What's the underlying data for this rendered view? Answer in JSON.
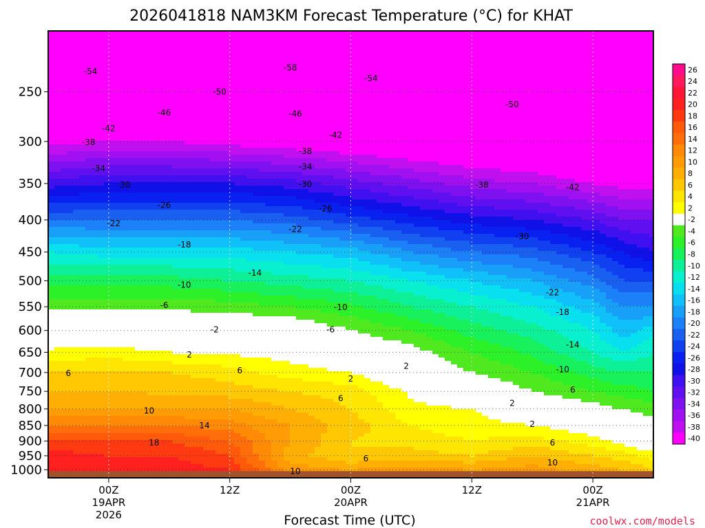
{
  "chart_data": {
    "type": "heatmap",
    "title": "2026041818 NAM3KM Forecast Temperature (°C) for KHAT",
    "xlabel": "Forecast Time (UTC)",
    "ylabel": "",
    "credit": "coolwx.com/models",
    "y_axis": {
      "scale": "log",
      "inverted": true,
      "unit": "hPa",
      "ylim": [
        1030,
        200
      ],
      "ticks": [
        250,
        300,
        350,
        400,
        450,
        500,
        550,
        600,
        650,
        700,
        750,
        800,
        850,
        900,
        950,
        1000
      ]
    },
    "x_axis": {
      "unit": "hours since 2026-04-18 18Z",
      "xlim": [
        0,
        60
      ],
      "gridlines_at": [
        6,
        18,
        30,
        42,
        54
      ],
      "ticks": [
        {
          "x": 6,
          "label": "00Z",
          "sub1": "19APR",
          "sub2": "2026"
        },
        {
          "x": 18,
          "label": "12Z",
          "sub1": "",
          "sub2": ""
        },
        {
          "x": 30,
          "label": "00Z",
          "sub1": "20APR",
          "sub2": ""
        },
        {
          "x": 42,
          "label": "12Z",
          "sub1": "",
          "sub2": ""
        },
        {
          "x": 54,
          "label": "00Z",
          "sub1": "21APR",
          "sub2": ""
        }
      ]
    },
    "grid": true,
    "legend_position": "right",
    "colorbar": {
      "levels": [
        26,
        24,
        22,
        20,
        18,
        16,
        14,
        12,
        10,
        8,
        6,
        4,
        2,
        -2,
        -4,
        -6,
        -8,
        -10,
        -12,
        -14,
        -16,
        -18,
        -20,
        -22,
        -24,
        -26,
        -28,
        -30,
        -32,
        -34,
        -36,
        -38,
        -40
      ],
      "colors": [
        "#ff0c8c",
        "#ff1a5e",
        "#ff1636",
        "#ff2020",
        "#ff3a10",
        "#ff5a0a",
        "#ff6e08",
        "#ff8a06",
        "#ff9c05",
        "#ffae04",
        "#ffc803",
        "#ffe602",
        "#ffff00",
        "#ffffff",
        "#50e81e",
        "#2cf028",
        "#18f05c",
        "#0ef098",
        "#08f0d0",
        "#08e0f0",
        "#10c0f8",
        "#18a0f8",
        "#1c80f8",
        "#1a60f0",
        "#1040f0",
        "#0820f0",
        "#1010e8",
        "#4010f0",
        "#6010f0",
        "#7f10f0",
        "#a010f0",
        "#c010f0",
        "#ff00ff"
      ]
    },
    "profiles": [
      {
        "x": 0,
        "points": [
          [
            200,
            -60
          ],
          [
            250,
            -52
          ],
          [
            300,
            -41
          ],
          [
            350,
            -31
          ],
          [
            400,
            -22
          ],
          [
            450,
            -14
          ],
          [
            500,
            -9
          ],
          [
            550,
            -4.5
          ],
          [
            600,
            -1
          ],
          [
            650,
            2.5
          ],
          [
            700,
            6
          ],
          [
            750,
            8
          ],
          [
            800,
            10
          ],
          [
            850,
            14
          ],
          [
            900,
            18.5
          ],
          [
            950,
            21
          ],
          [
            1000,
            22
          ]
        ]
      },
      {
        "x": 6,
        "points": [
          [
            200,
            -60
          ],
          [
            250,
            -52
          ],
          [
            300,
            -40
          ],
          [
            350,
            -30
          ],
          [
            400,
            -22
          ],
          [
            450,
            -15
          ],
          [
            500,
            -9
          ],
          [
            550,
            -4.5
          ],
          [
            600,
            -1
          ],
          [
            650,
            3
          ],
          [
            700,
            6.5
          ],
          [
            750,
            8
          ],
          [
            800,
            10
          ],
          [
            850,
            14
          ],
          [
            900,
            18
          ],
          [
            950,
            20
          ],
          [
            1000,
            21
          ]
        ]
      },
      {
        "x": 12,
        "points": [
          [
            200,
            -60
          ],
          [
            250,
            -52
          ],
          [
            300,
            -40
          ],
          [
            350,
            -30
          ],
          [
            400,
            -22
          ],
          [
            450,
            -15
          ],
          [
            500,
            -9
          ],
          [
            550,
            -4.5
          ],
          [
            600,
            -1
          ],
          [
            650,
            2
          ],
          [
            700,
            6
          ],
          [
            750,
            7.5
          ],
          [
            800,
            10
          ],
          [
            850,
            14
          ],
          [
            900,
            18
          ],
          [
            950,
            20
          ],
          [
            1000,
            21
          ]
        ]
      },
      {
        "x": 18,
        "points": [
          [
            200,
            -60
          ],
          [
            250,
            -53
          ],
          [
            300,
            -41
          ],
          [
            350,
            -30
          ],
          [
            400,
            -22
          ],
          [
            450,
            -15
          ],
          [
            500,
            -10
          ],
          [
            550,
            -5
          ],
          [
            600,
            -1
          ],
          [
            650,
            1.5
          ],
          [
            700,
            5
          ],
          [
            750,
            7
          ],
          [
            800,
            10
          ],
          [
            850,
            13
          ],
          [
            900,
            16
          ],
          [
            950,
            18
          ],
          [
            1000,
            20
          ]
        ]
      },
      {
        "x": 24,
        "points": [
          [
            200,
            -60
          ],
          [
            250,
            -54
          ],
          [
            300,
            -42
          ],
          [
            350,
            -31
          ],
          [
            400,
            -23
          ],
          [
            450,
            -16
          ],
          [
            500,
            -11
          ],
          [
            550,
            -6
          ],
          [
            600,
            -1.5
          ],
          [
            650,
            1
          ],
          [
            700,
            3
          ],
          [
            750,
            6
          ],
          [
            800,
            8
          ],
          [
            850,
            10
          ],
          [
            900,
            10
          ],
          [
            950,
            9
          ],
          [
            1000,
            11
          ]
        ]
      },
      {
        "x": 30,
        "points": [
          [
            200,
            -60
          ],
          [
            250,
            -55
          ],
          [
            300,
            -43
          ],
          [
            350,
            -33
          ],
          [
            400,
            -25
          ],
          [
            450,
            -17
          ],
          [
            500,
            -12
          ],
          [
            550,
            -7.5
          ],
          [
            600,
            -4
          ],
          [
            650,
            -1
          ],
          [
            700,
            2
          ],
          [
            750,
            5
          ],
          [
            800,
            6
          ],
          [
            850,
            7
          ],
          [
            900,
            6
          ],
          [
            950,
            6
          ],
          [
            1000,
            10
          ]
        ]
      },
      {
        "x": 36,
        "points": [
          [
            200,
            -60
          ],
          [
            250,
            -55
          ],
          [
            300,
            -44
          ],
          [
            350,
            -35
          ],
          [
            400,
            -27
          ],
          [
            450,
            -20
          ],
          [
            500,
            -14
          ],
          [
            550,
            -10
          ],
          [
            600,
            -6
          ],
          [
            650,
            -3
          ],
          [
            700,
            -1
          ],
          [
            750,
            1.5
          ],
          [
            800,
            2.5
          ],
          [
            850,
            4
          ],
          [
            900,
            5
          ],
          [
            950,
            7
          ],
          [
            1000,
            11
          ]
        ]
      },
      {
        "x": 42,
        "points": [
          [
            200,
            -60
          ],
          [
            250,
            -55
          ],
          [
            300,
            -45
          ],
          [
            350,
            -37
          ],
          [
            400,
            -29
          ],
          [
            450,
            -22
          ],
          [
            500,
            -16
          ],
          [
            550,
            -12
          ],
          [
            600,
            -9
          ],
          [
            650,
            -6
          ],
          [
            700,
            -4
          ],
          [
            750,
            -1
          ],
          [
            800,
            2
          ],
          [
            850,
            3
          ],
          [
            900,
            4
          ],
          [
            950,
            6
          ],
          [
            1000,
            10
          ]
        ]
      },
      {
        "x": 48,
        "points": [
          [
            200,
            -60
          ],
          [
            250,
            -55
          ],
          [
            300,
            -46
          ],
          [
            350,
            -38
          ],
          [
            400,
            -30
          ],
          [
            450,
            -23
          ],
          [
            500,
            -18
          ],
          [
            550,
            -14
          ],
          [
            600,
            -11
          ],
          [
            650,
            -8.5
          ],
          [
            700,
            -6
          ],
          [
            750,
            -4
          ],
          [
            800,
            -1
          ],
          [
            850,
            2
          ],
          [
            900,
            5
          ],
          [
            950,
            8
          ],
          [
            1000,
            11
          ]
        ]
      },
      {
        "x": 54,
        "points": [
          [
            200,
            -60
          ],
          [
            250,
            -56
          ],
          [
            300,
            -47
          ],
          [
            350,
            -40
          ],
          [
            400,
            -32
          ],
          [
            450,
            -26
          ],
          [
            500,
            -21
          ],
          [
            550,
            -17
          ],
          [
            600,
            -14
          ],
          [
            650,
            -12
          ],
          [
            700,
            -9
          ],
          [
            750,
            -6
          ],
          [
            800,
            -3
          ],
          [
            850,
            0
          ],
          [
            900,
            3
          ],
          [
            950,
            6
          ],
          [
            1000,
            9
          ]
        ]
      },
      {
        "x": 57,
        "points": [
          [
            200,
            -60
          ],
          [
            250,
            -56
          ],
          [
            300,
            -48
          ],
          [
            350,
            -41
          ],
          [
            400,
            -34
          ],
          [
            450,
            -28
          ],
          [
            500,
            -24
          ],
          [
            550,
            -20
          ],
          [
            600,
            -17
          ],
          [
            650,
            -14
          ],
          [
            700,
            -10
          ],
          [
            750,
            -7
          ],
          [
            800,
            -4
          ],
          [
            850,
            -2
          ],
          [
            900,
            1
          ],
          [
            950,
            5
          ],
          [
            1000,
            8
          ]
        ]
      },
      {
        "x": 60,
        "points": [
          [
            200,
            -60
          ],
          [
            250,
            -56
          ],
          [
            300,
            -48
          ],
          [
            350,
            -41
          ],
          [
            400,
            -34
          ],
          [
            450,
            -30
          ],
          [
            500,
            -24
          ],
          [
            550,
            -20
          ],
          [
            600,
            -15
          ],
          [
            650,
            -12
          ],
          [
            700,
            -10
          ],
          [
            750,
            -8
          ],
          [
            800,
            -5
          ],
          [
            850,
            -3
          ],
          [
            900,
            -1
          ],
          [
            950,
            3
          ],
          [
            1000,
            6
          ]
        ]
      }
    ],
    "contour_labels": [
      {
        "x": 4.2,
        "p": 232,
        "text": "-54"
      },
      {
        "x": 24.0,
        "p": 229,
        "text": "-58"
      },
      {
        "x": 32.0,
        "p": 238,
        "text": "-54"
      },
      {
        "x": 17.0,
        "p": 250,
        "text": "-50"
      },
      {
        "x": 46.0,
        "p": 262,
        "text": "-50"
      },
      {
        "x": 11.5,
        "p": 270,
        "text": "-46"
      },
      {
        "x": 6.0,
        "p": 286,
        "text": "-42"
      },
      {
        "x": 24.5,
        "p": 271,
        "text": "-46"
      },
      {
        "x": 28.5,
        "p": 293,
        "text": "-42"
      },
      {
        "x": 4.0,
        "p": 301,
        "text": "-38"
      },
      {
        "x": 25.5,
        "p": 311,
        "text": "-38"
      },
      {
        "x": 5.0,
        "p": 331,
        "text": "-34"
      },
      {
        "x": 25.5,
        "p": 329,
        "text": "-34"
      },
      {
        "x": 7.5,
        "p": 352,
        "text": "-30"
      },
      {
        "x": 25.5,
        "p": 351,
        "text": "-30"
      },
      {
        "x": 43.0,
        "p": 352,
        "text": "-38"
      },
      {
        "x": 52.0,
        "p": 355,
        "text": "-42"
      },
      {
        "x": 11.5,
        "p": 379,
        "text": "-26"
      },
      {
        "x": 27.5,
        "p": 384,
        "text": "-26"
      },
      {
        "x": 6.5,
        "p": 405,
        "text": "-22"
      },
      {
        "x": 24.5,
        "p": 414,
        "text": "-22"
      },
      {
        "x": 47.0,
        "p": 425,
        "text": "-30"
      },
      {
        "x": 13.5,
        "p": 438,
        "text": "-18"
      },
      {
        "x": 20.5,
        "p": 486,
        "text": "-14"
      },
      {
        "x": 13.5,
        "p": 508,
        "text": "-10"
      },
      {
        "x": 11.5,
        "p": 547,
        "text": "-6"
      },
      {
        "x": 29.0,
        "p": 551,
        "text": "-10"
      },
      {
        "x": 50.0,
        "p": 522,
        "text": "-22"
      },
      {
        "x": 51.0,
        "p": 561,
        "text": "-18"
      },
      {
        "x": 28.0,
        "p": 598,
        "text": "-6"
      },
      {
        "x": 16.5,
        "p": 598,
        "text": "-2"
      },
      {
        "x": 14.0,
        "p": 656,
        "text": "2"
      },
      {
        "x": 52.0,
        "p": 632,
        "text": "-14"
      },
      {
        "x": 35.5,
        "p": 684,
        "text": "2"
      },
      {
        "x": 51.0,
        "p": 692,
        "text": "-10"
      },
      {
        "x": 2.0,
        "p": 702,
        "text": "6"
      },
      {
        "x": 19.0,
        "p": 695,
        "text": "6"
      },
      {
        "x": 30.0,
        "p": 716,
        "text": "2"
      },
      {
        "x": 52.0,
        "p": 746,
        "text": "6"
      },
      {
        "x": 46.0,
        "p": 783,
        "text": "2"
      },
      {
        "x": 29.0,
        "p": 770,
        "text": "6"
      },
      {
        "x": 10.0,
        "p": 806,
        "text": "10"
      },
      {
        "x": 15.5,
        "p": 850,
        "text": "14"
      },
      {
        "x": 48.0,
        "p": 846,
        "text": "2"
      },
      {
        "x": 10.5,
        "p": 906,
        "text": "18"
      },
      {
        "x": 50.0,
        "p": 906,
        "text": "6"
      },
      {
        "x": 31.5,
        "p": 960,
        "text": "6"
      },
      {
        "x": 50.0,
        "p": 975,
        "text": "10"
      },
      {
        "x": 24.5,
        "p": 1006,
        "text": "10"
      }
    ]
  }
}
